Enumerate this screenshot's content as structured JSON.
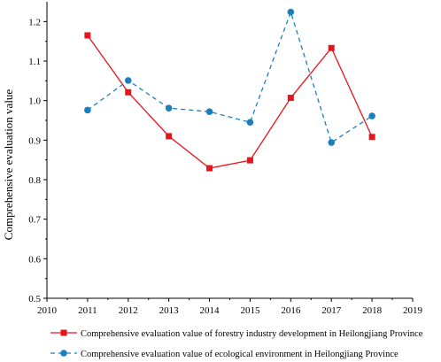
{
  "chart_data": {
    "type": "line",
    "title": "",
    "xlabel": "",
    "ylabel": "Comprehensive evaluation value",
    "xlim": [
      2010,
      2019
    ],
    "ylim": [
      0.5,
      1.25
    ],
    "x_ticks": [
      "2010",
      "2011",
      "2012",
      "2013",
      "2014",
      "2015",
      "2016",
      "2017",
      "2018",
      "2019"
    ],
    "y_ticks": [
      "0.5",
      "0.6",
      "0.7",
      "0.8",
      "0.9",
      "1.0",
      "1.1",
      "1.2"
    ],
    "grid": false,
    "legend_position": "bottom",
    "series": [
      {
        "name": "Comprehensive evaluation value of forestry industry development in Heilongjiang Province",
        "color": "#e8141b",
        "line_style": "solid",
        "marker": "square",
        "x": [
          2011,
          2012,
          2013,
          2014,
          2015,
          2016,
          2017,
          2018
        ],
        "values": [
          1.165,
          1.021,
          0.91,
          0.829,
          0.849,
          1.007,
          1.133,
          0.908
        ]
      },
      {
        "name": "Comprehensive evaluation value of ecological environment in Heilongjiang Province",
        "color": "#1a7fc0",
        "line_style": "dashed",
        "marker": "circle",
        "x": [
          2011,
          2012,
          2013,
          2014,
          2015,
          2016,
          2017,
          2018
        ],
        "values": [
          0.976,
          1.051,
          0.981,
          0.972,
          0.945,
          1.224,
          0.894,
          0.961
        ]
      }
    ]
  }
}
